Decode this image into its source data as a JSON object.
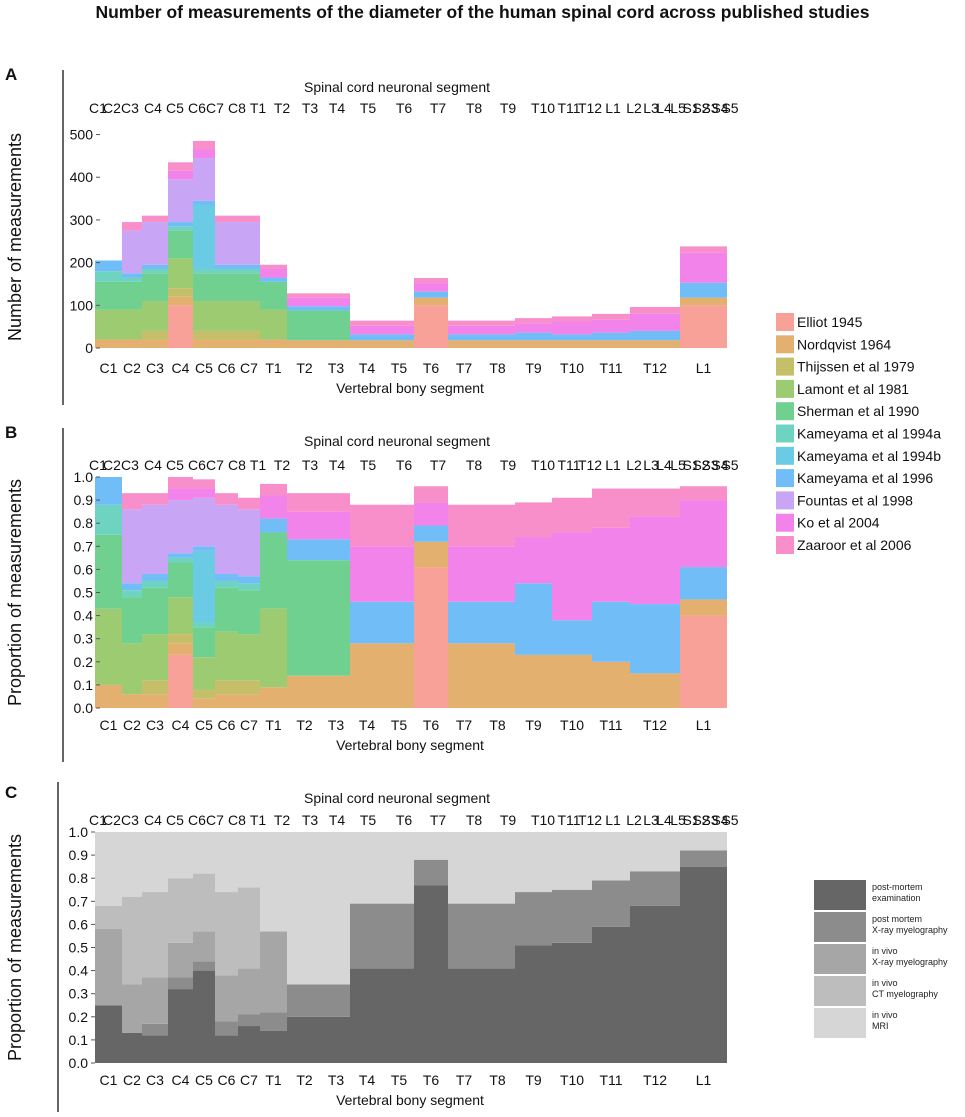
{
  "title": "Number of measurements of the diameter of the human spinal cord across published studies",
  "neuronal_label": "Spinal cord neuronal segment",
  "vertebral_label": "Vertebral bony segment",
  "neuronal_ticks": [
    "C1",
    "C2",
    "C3",
    "C4",
    "C5",
    "C6",
    "C7",
    "C8",
    "T1",
    "T2",
    "T3",
    "T4",
    "T5",
    "T6",
    "T7",
    "T8",
    "T9",
    "T10",
    "T11",
    "T12",
    "L1",
    "L2",
    "L3",
    "L4",
    "L5",
    "S1",
    "S2",
    "S3",
    "S4",
    "S5"
  ],
  "chart_data": [
    {
      "panel": "A",
      "type": "bar",
      "stacked": true,
      "xlabel": "Vertebral bony segment",
      "ylabel": "Number of measurements",
      "top_axis_label": "Spinal cord neuronal segment",
      "ylim": [
        0,
        520
      ],
      "yticks": [
        0,
        100,
        200,
        300,
        400,
        500
      ],
      "categories": [
        "C1",
        "C2",
        "C3",
        "C4",
        "C5",
        "C6",
        "C7",
        "T1",
        "T2",
        "T3",
        "T4",
        "T5",
        "T6",
        "T7",
        "T8",
        "T9",
        "T10",
        "T11",
        "T12",
        "L1"
      ],
      "series": [
        {
          "name": "Elliot 1945",
          "color": "#F8A199",
          "values": [
            0,
            0,
            0,
            100,
            0,
            0,
            0,
            0,
            0,
            0,
            0,
            0,
            100,
            0,
            0,
            0,
            0,
            0,
            0,
            100
          ]
        },
        {
          "name": "Nordqvist 1964",
          "color": "#E4B06F",
          "values": [
            20,
            20,
            20,
            20,
            20,
            20,
            20,
            20,
            18,
            18,
            18,
            18,
            18,
            18,
            18,
            18,
            18,
            18,
            18,
            18
          ]
        },
        {
          "name": "Thijssen et al 1979",
          "color": "#C5BF6A",
          "values": [
            0,
            0,
            20,
            20,
            20,
            20,
            20,
            0,
            0,
            0,
            0,
            0,
            0,
            0,
            0,
            0,
            0,
            0,
            0,
            0
          ]
        },
        {
          "name": "Lamont et al 1981",
          "color": "#9DCB72",
          "values": [
            70,
            70,
            70,
            70,
            70,
            70,
            70,
            70,
            0,
            0,
            0,
            0,
            0,
            0,
            0,
            0,
            0,
            0,
            0,
            0
          ]
        },
        {
          "name": "Sherman et al 1990",
          "color": "#70D08F",
          "values": [
            65,
            65,
            65,
            65,
            65,
            65,
            65,
            65,
            70,
            70,
            0,
            0,
            0,
            0,
            0,
            0,
            0,
            0,
            0,
            0
          ]
        },
        {
          "name": "Kameyama et al 1994a",
          "color": "#6FD3C2",
          "values": [
            25,
            10,
            10,
            10,
            10,
            10,
            10,
            0,
            0,
            0,
            0,
            0,
            0,
            0,
            0,
            0,
            0,
            0,
            0,
            0
          ]
        },
        {
          "name": "Kameyama et al 1994b",
          "color": "#6CCBE4",
          "values": [
            0,
            0,
            0,
            0,
            150,
            0,
            0,
            0,
            0,
            0,
            0,
            0,
            0,
            0,
            0,
            0,
            0,
            0,
            0,
            0
          ]
        },
        {
          "name": "Kameyama et al 1996",
          "color": "#70BDF7",
          "values": [
            25,
            10,
            10,
            10,
            10,
            10,
            10,
            10,
            10,
            10,
            14,
            14,
            14,
            14,
            14,
            18,
            14,
            18,
            22,
            35
          ]
        },
        {
          "name": "Fountas et al 1998",
          "color": "#C8A6F5",
          "values": [
            0,
            100,
            100,
            100,
            100,
            100,
            100,
            0,
            0,
            0,
            0,
            0,
            0,
            0,
            0,
            0,
            0,
            0,
            0,
            0
          ]
        },
        {
          "name": "Ko et al 2004",
          "color": "#F183EA",
          "values": [
            0,
            0,
            0,
            20,
            20,
            0,
            0,
            20,
            20,
            20,
            20,
            20,
            20,
            20,
            20,
            22,
            30,
            30,
            40,
            70
          ]
        },
        {
          "name": "Zaaroor et al 2006",
          "color": "#F98FCA",
          "values": [
            0,
            20,
            15,
            20,
            20,
            15,
            15,
            10,
            10,
            10,
            12,
            12,
            12,
            12,
            12,
            12,
            12,
            14,
            16,
            15
          ]
        }
      ]
    },
    {
      "panel": "B",
      "type": "bar",
      "stacked": true,
      "xlabel": "Vertebral bony segment",
      "ylabel": "Proportion of measurements",
      "top_axis_label": "Spinal cord neuronal segment",
      "ylim": [
        0,
        1.0
      ],
      "yticks": [
        0.0,
        0.1,
        0.2,
        0.3,
        0.4,
        0.5,
        0.6,
        0.7,
        0.8,
        0.9,
        1.0
      ],
      "categories": [
        "C1",
        "C2",
        "C3",
        "C4",
        "C5",
        "C6",
        "C7",
        "T1",
        "T2",
        "T3",
        "T4",
        "T5",
        "T6",
        "T7",
        "T8",
        "T9",
        "T10",
        "T11",
        "T12",
        "L1"
      ],
      "series": [
        {
          "name": "Elliot 1945",
          "color": "#F8A199",
          "values": [
            0,
            0,
            0,
            0.23,
            0,
            0,
            0,
            0,
            0,
            0,
            0,
            0,
            0.61,
            0,
            0,
            0,
            0,
            0,
            0,
            0.4
          ]
        },
        {
          "name": "Nordqvist 1964",
          "color": "#E4B06F",
          "values": [
            0.1,
            0.06,
            0.06,
            0.05,
            0.04,
            0.06,
            0.06,
            0.09,
            0.14,
            0.14,
            0.28,
            0.28,
            0.11,
            0.28,
            0.28,
            0.23,
            0.23,
            0.2,
            0.15,
            0.07
          ]
        },
        {
          "name": "Thijssen et al 1979",
          "color": "#C5BF6A",
          "values": [
            0,
            0,
            0.06,
            0.04,
            0.04,
            0.06,
            0.06,
            0,
            0,
            0,
            0,
            0,
            0,
            0,
            0,
            0,
            0,
            0,
            0,
            0
          ]
        },
        {
          "name": "Lamont et al 1981",
          "color": "#9DCB72",
          "values": [
            0.33,
            0.22,
            0.2,
            0.16,
            0.14,
            0.21,
            0.2,
            0.34,
            0,
            0,
            0,
            0,
            0,
            0,
            0,
            0,
            0,
            0,
            0,
            0
          ]
        },
        {
          "name": "Sherman et al 1990",
          "color": "#70D08F",
          "values": [
            0.32,
            0.2,
            0.2,
            0.15,
            0.13,
            0.19,
            0.19,
            0.33,
            0.5,
            0.5,
            0,
            0,
            0,
            0,
            0,
            0,
            0,
            0,
            0,
            0
          ]
        },
        {
          "name": "Kameyama et al 1994a",
          "color": "#6FD3C2",
          "values": [
            0.13,
            0.03,
            0.03,
            0.02,
            0.02,
            0.03,
            0.03,
            0,
            0,
            0,
            0,
            0,
            0,
            0,
            0,
            0,
            0,
            0,
            0,
            0
          ]
        },
        {
          "name": "Kameyama et al 1994b",
          "color": "#6CCBE4",
          "values": [
            0,
            0,
            0,
            0,
            0.31,
            0,
            0,
            0,
            0,
            0,
            0,
            0,
            0,
            0,
            0,
            0,
            0,
            0,
            0,
            0
          ]
        },
        {
          "name": "Kameyama et al 1996",
          "color": "#70BDF7",
          "values": [
            0.12,
            0.03,
            0.03,
            0.02,
            0.02,
            0.03,
            0.03,
            0.06,
            0.09,
            0.09,
            0.18,
            0.18,
            0.07,
            0.18,
            0.18,
            0.31,
            0.15,
            0.26,
            0.3,
            0.14
          ]
        },
        {
          "name": "Fountas et al 1998",
          "color": "#C8A6F5",
          "values": [
            0,
            0.32,
            0.3,
            0.23,
            0.21,
            0.3,
            0.29,
            0,
            0,
            0,
            0,
            0,
            0,
            0,
            0,
            0,
            0,
            0,
            0,
            0
          ]
        },
        {
          "name": "Ko et al 2004",
          "color": "#F183EA",
          "values": [
            0,
            0,
            0,
            0.05,
            0.04,
            0,
            0,
            0.1,
            0.12,
            0.12,
            0.24,
            0.24,
            0.1,
            0.24,
            0.24,
            0.2,
            0.38,
            0.32,
            0.38,
            0.29
          ]
        },
        {
          "name": "Zaaroor et al 2006",
          "color": "#F98FCA",
          "values": [
            0,
            0.07,
            0.05,
            0.05,
            0.04,
            0.05,
            0.05,
            0.05,
            0.08,
            0.08,
            0.18,
            0.18,
            0.07,
            0.18,
            0.18,
            0.15,
            0.15,
            0.17,
            0.12,
            0.06
          ]
        }
      ]
    },
    {
      "panel": "C",
      "type": "bar",
      "stacked": true,
      "xlabel": "Vertebral bony segment",
      "ylabel": "Proportion of measurements",
      "top_axis_label": "Spinal cord neuronal segment",
      "ylim": [
        0,
        1.0
      ],
      "yticks": [
        0.0,
        0.1,
        0.2,
        0.3,
        0.4,
        0.5,
        0.6,
        0.7,
        0.8,
        0.9,
        1.0
      ],
      "categories": [
        "C1",
        "C2",
        "C3",
        "C4",
        "C5",
        "C6",
        "C7",
        "T1",
        "T2",
        "T3",
        "T4",
        "T5",
        "T6",
        "T7",
        "T8",
        "T9",
        "T10",
        "T11",
        "T12",
        "L1"
      ],
      "series": [
        {
          "name": "post-mortem examination",
          "color": "#666666",
          "values": [
            0.25,
            0.13,
            0.12,
            0.32,
            0.4,
            0.12,
            0.16,
            0.14,
            0.2,
            0.2,
            0.41,
            0.41,
            0.77,
            0.41,
            0.41,
            0.51,
            0.52,
            0.59,
            0.68,
            0.85
          ]
        },
        {
          "name": "post mortem X-ray myelography",
          "color": "#8C8C8C",
          "values": [
            0,
            0,
            0.05,
            0.05,
            0.04,
            0.06,
            0.05,
            0.08,
            0.14,
            0.14,
            0.28,
            0.28,
            0.11,
            0.28,
            0.28,
            0.23,
            0.23,
            0.2,
            0.15,
            0.07
          ]
        },
        {
          "name": "in vivo X-ray myelography",
          "color": "#A6A6A6",
          "values": [
            0.33,
            0.21,
            0.2,
            0.15,
            0.13,
            0.2,
            0.2,
            0.35,
            0,
            0,
            0,
            0,
            0,
            0,
            0,
            0,
            0,
            0,
            0,
            0
          ]
        },
        {
          "name": "in vivo CT myelography",
          "color": "#BDBDBD",
          "values": [
            0.1,
            0.38,
            0.37,
            0.28,
            0.25,
            0.36,
            0.35,
            0,
            0,
            0,
            0,
            0,
            0,
            0,
            0,
            0,
            0,
            0,
            0,
            0
          ]
        },
        {
          "name": "in vivo MRI",
          "color": "#D6D6D6",
          "values": [
            0.32,
            0.28,
            0.26,
            0.2,
            0.18,
            0.26,
            0.24,
            0.43,
            0.66,
            0.66,
            0.31,
            0.31,
            0.12,
            0.31,
            0.31,
            0.26,
            0.25,
            0.21,
            0.17,
            0.08
          ]
        }
      ]
    }
  ]
}
